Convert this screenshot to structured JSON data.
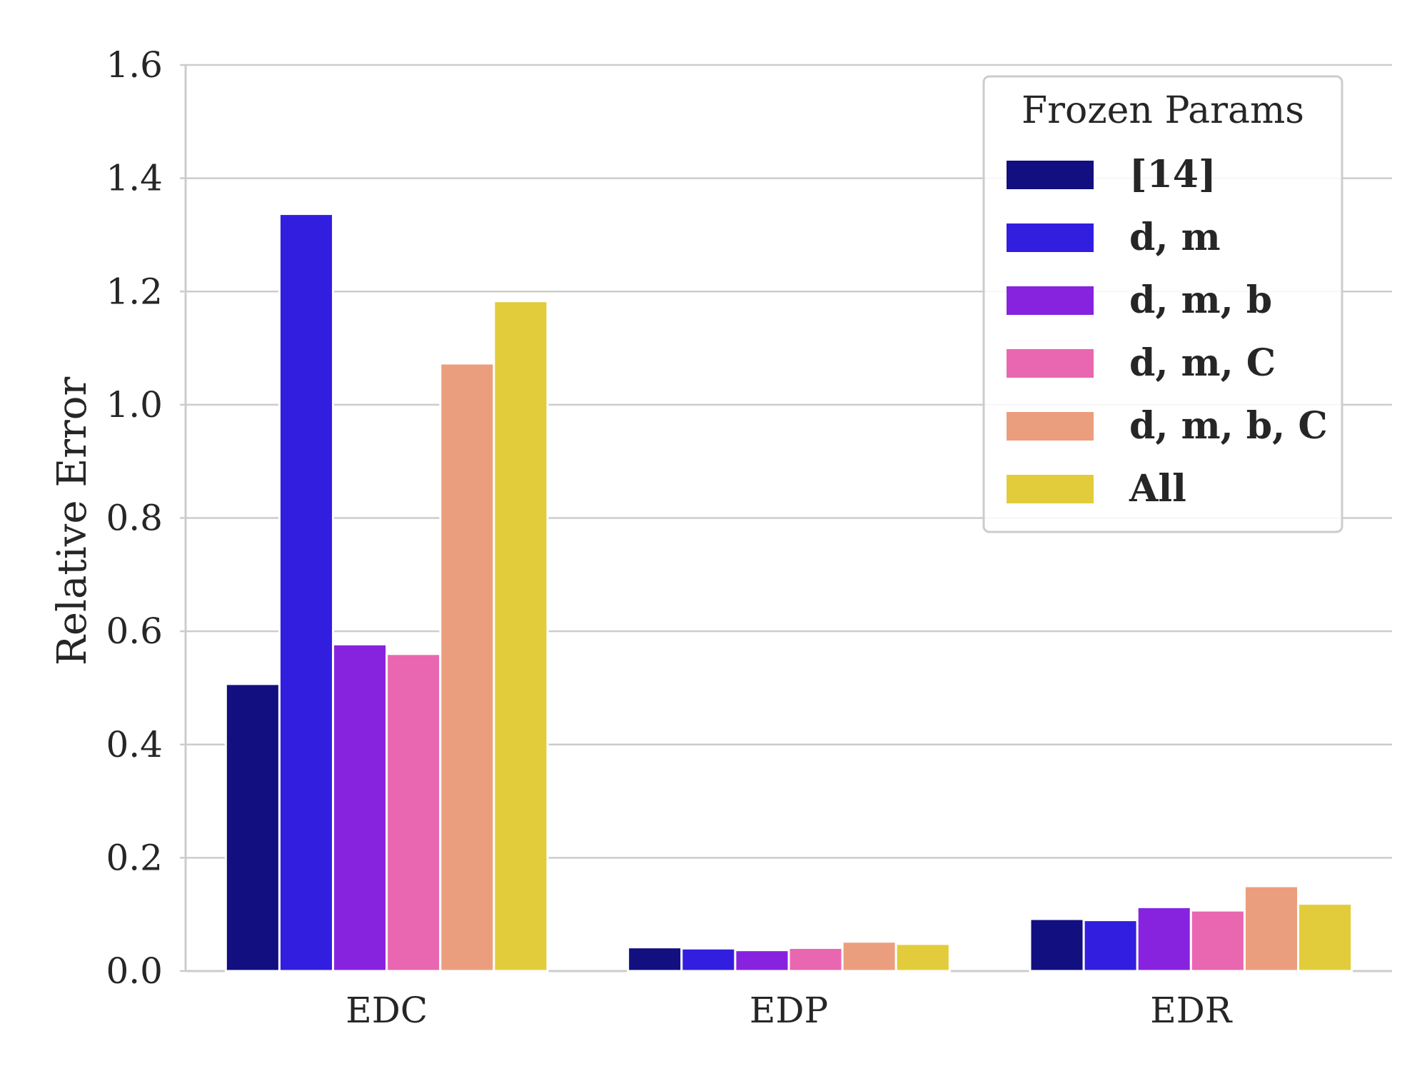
{
  "chart_data": {
    "type": "bar",
    "title": "",
    "xlabel": "",
    "ylabel": "Relative Error",
    "ylim": [
      0,
      1.6
    ],
    "yticks": [
      "0.0",
      "0.2",
      "0.4",
      "0.6",
      "0.8",
      "1.0",
      "1.2",
      "1.4",
      "1.6"
    ],
    "grid": true,
    "categories": [
      "EDC",
      "EDP",
      "EDR"
    ],
    "legend": {
      "title": "Frozen Params",
      "placement": "top-right"
    },
    "series": [
      {
        "name": "[14]",
        "color": "#120F80",
        "values": [
          0.507,
          0.042,
          0.092
        ]
      },
      {
        "name": "d, m",
        "color": "#321EDF",
        "values": [
          1.337,
          0.04,
          0.09
        ]
      },
      {
        "name": "d, m, b",
        "color": "#8723DE",
        "values": [
          0.577,
          0.037,
          0.113
        ]
      },
      {
        "name": "d, m, C",
        "color": "#E867B0",
        "values": [
          0.56,
          0.041,
          0.107
        ]
      },
      {
        "name": "d, m, b, C",
        "color": "#EB9E7D",
        "values": [
          1.073,
          0.052,
          0.15
        ]
      },
      {
        "name": "All",
        "color": "#E2CC3B",
        "values": [
          1.183,
          0.048,
          0.119
        ]
      }
    ]
  }
}
